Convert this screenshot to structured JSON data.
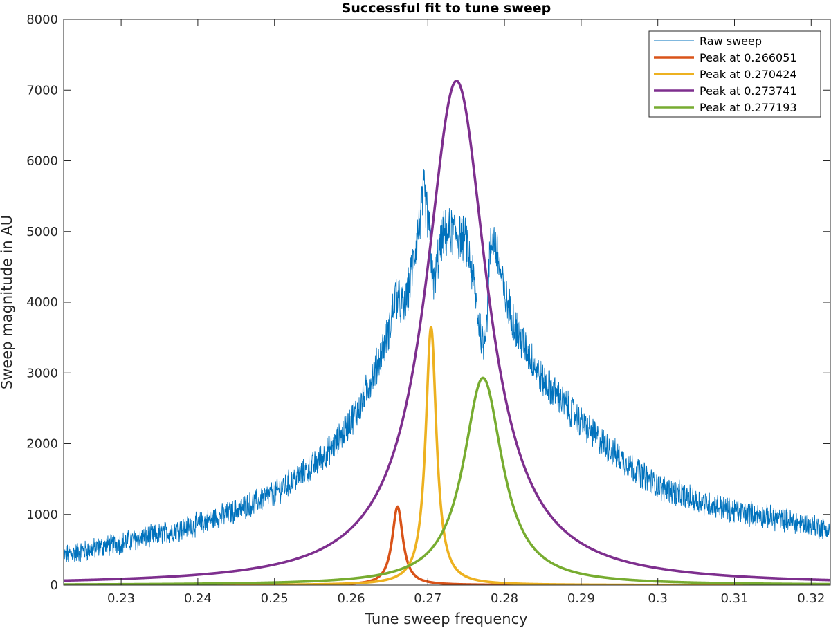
{
  "chart_data": {
    "type": "line",
    "title": "Successful fit to tune sweep",
    "xlabel": "Tune sweep frequency",
    "ylabel": "Sweep magnitude in AU",
    "xlim": [
      0.2225,
      0.3225
    ],
    "ylim": [
      0,
      8000
    ],
    "xticks": [
      0.23,
      0.24,
      0.25,
      0.26,
      0.27,
      0.28,
      0.29,
      0.3,
      0.31,
      0.32
    ],
    "xtick_labels": [
      "0.23",
      "0.24",
      "0.25",
      "0.26",
      "0.27",
      "0.28",
      "0.29",
      "0.3",
      "0.31",
      "0.32"
    ],
    "yticks": [
      0,
      1000,
      2000,
      3000,
      4000,
      5000,
      6000,
      7000,
      8000
    ],
    "ytick_labels": [
      "0",
      "1000",
      "2000",
      "3000",
      "4000",
      "5000",
      "6000",
      "7000",
      "8000"
    ],
    "grid": false,
    "legend_position": "top-right",
    "series": [
      {
        "name": "Raw sweep",
        "color": "#0072BD",
        "style": "thin noisy line",
        "x": [
          0.2225,
          0.225,
          0.23,
          0.235,
          0.24,
          0.245,
          0.25,
          0.255,
          0.258,
          0.261,
          0.263,
          0.265,
          0.2657,
          0.267,
          0.268,
          0.2695,
          0.2703,
          0.2707,
          0.2713,
          0.272,
          0.273,
          0.274,
          0.275,
          0.276,
          0.2765,
          0.2772,
          0.2778,
          0.278,
          0.2785,
          0.279,
          0.28,
          0.282,
          0.285,
          0.29,
          0.295,
          0.3,
          0.305,
          0.31,
          0.315,
          0.32,
          0.3225
        ],
        "y": [
          420,
          480,
          600,
          720,
          860,
          1050,
          1300,
          1680,
          2000,
          2500,
          3000,
          3600,
          4100,
          3900,
          4500,
          5550,
          4900,
          4200,
          4600,
          4950,
          5000,
          4950,
          4850,
          4300,
          3800,
          3400,
          3900,
          4600,
          4950,
          4700,
          4100,
          3500,
          2900,
          2300,
          1800,
          1400,
          1200,
          1050,
          950,
          850,
          780
        ]
      },
      {
        "name": "Peak at 0.266051",
        "color": "#D95319",
        "style": "fit",
        "center": 0.266051,
        "amplitude": 1110
      },
      {
        "name": "Peak at 0.270424",
        "color": "#EDB120",
        "style": "fit",
        "center": 0.270424,
        "amplitude": 3650
      },
      {
        "name": "Peak at 0.273741",
        "color": "#7E2F8E",
        "style": "fit",
        "center": 0.273741,
        "amplitude": 7130
      },
      {
        "name": "Peak at 0.277193",
        "color": "#77AC30",
        "style": "fit",
        "center": 0.277193,
        "amplitude": 2930
      }
    ]
  }
}
